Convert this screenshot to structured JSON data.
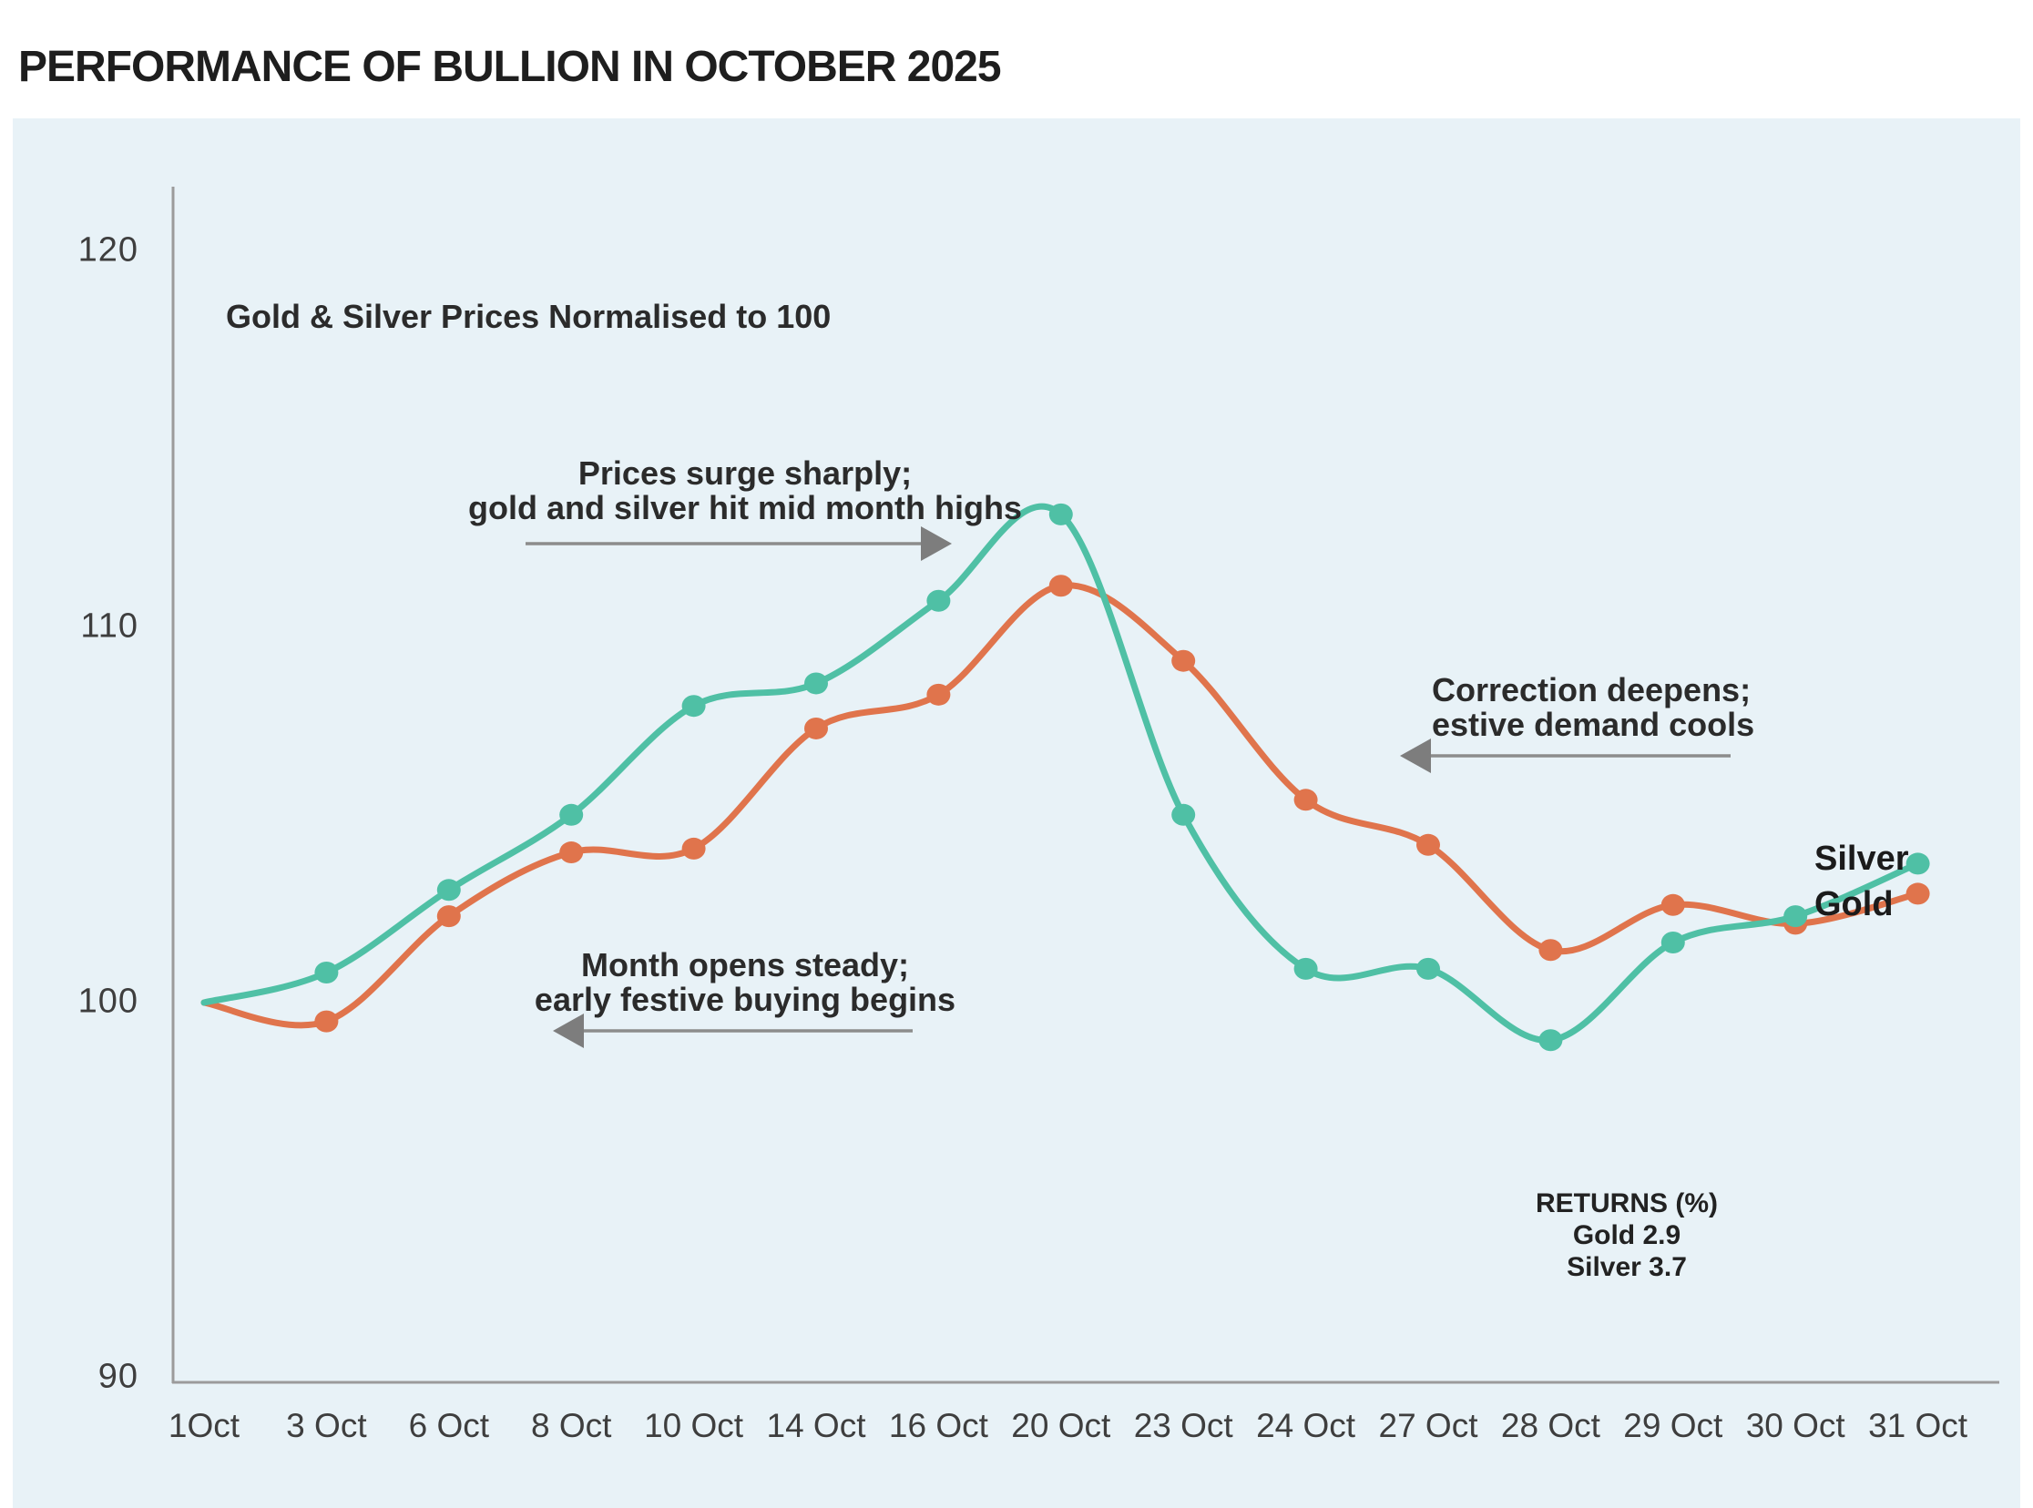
{
  "page": {
    "title": "PERFORMANCE OF BULLION IN OCTOBER 2025"
  },
  "colors": {
    "silver": "#4fc0a5",
    "gold": "#e0744c",
    "panel_background": "#e8f2f7",
    "axis": "#9b9b9b",
    "arrow": "#7d7d7d",
    "annotation_text": "#2b2b2b",
    "tick_text": "#3e3e3e",
    "title_text": "#1e1e1e"
  },
  "chart_data": {
    "type": "line",
    "title": "PERFORMANCE OF BULLION IN OCTOBER 2025",
    "subtitle": "Gold & Silver Prices Normalised to 100",
    "categories": [
      "1Oct",
      "3 Oct",
      "6 Oct",
      "8 Oct",
      "10 Oct",
      "14 Oct",
      "16 Oct",
      "20 Oct",
      "23 Oct",
      "24 Oct",
      "27 Oct",
      "28 Oct",
      "29 Oct",
      "30 Oct",
      "31 Oct"
    ],
    "series": [
      {
        "name": "Silver",
        "color": "#4fc0a5",
        "values": [
          100,
          100.8,
          103,
          105,
          107.9,
          108.5,
          110.7,
          113,
          105,
          100.9,
          100.9,
          99,
          101.6,
          102.3,
          103.7
        ]
      },
      {
        "name": "Gold",
        "color": "#e0744c",
        "values": [
          100,
          99.5,
          102.3,
          104,
          104.1,
          107.3,
          108.2,
          111.1,
          109.1,
          105.4,
          104.2,
          101.4,
          102.6,
          102.1,
          102.9
        ]
      }
    ],
    "ylim": [
      90,
      122
    ],
    "yticks": [
      120,
      110,
      100,
      90
    ],
    "xlabel": "",
    "ylabel": "",
    "grid": false,
    "legend_position": "end-of-line",
    "markers": "filled-dots-on-every-point-except-first",
    "smoothing": "curved"
  },
  "annotations": {
    "surge": {
      "line1": "Prices surge sharply;",
      "line2": "gold and silver hit mid month highs",
      "arrow": "right"
    },
    "correction": {
      "line1": "Correction deepens;",
      "line2": "estive demand cools",
      "arrow": "left"
    },
    "month": {
      "line1": "Month opens steady;",
      "line2": "early festive buying begins",
      "arrow": "left"
    },
    "returns": {
      "title": "RETURNS (%)",
      "gold_line": "Gold 2.9",
      "silver_line": "Silver 3.7"
    }
  }
}
